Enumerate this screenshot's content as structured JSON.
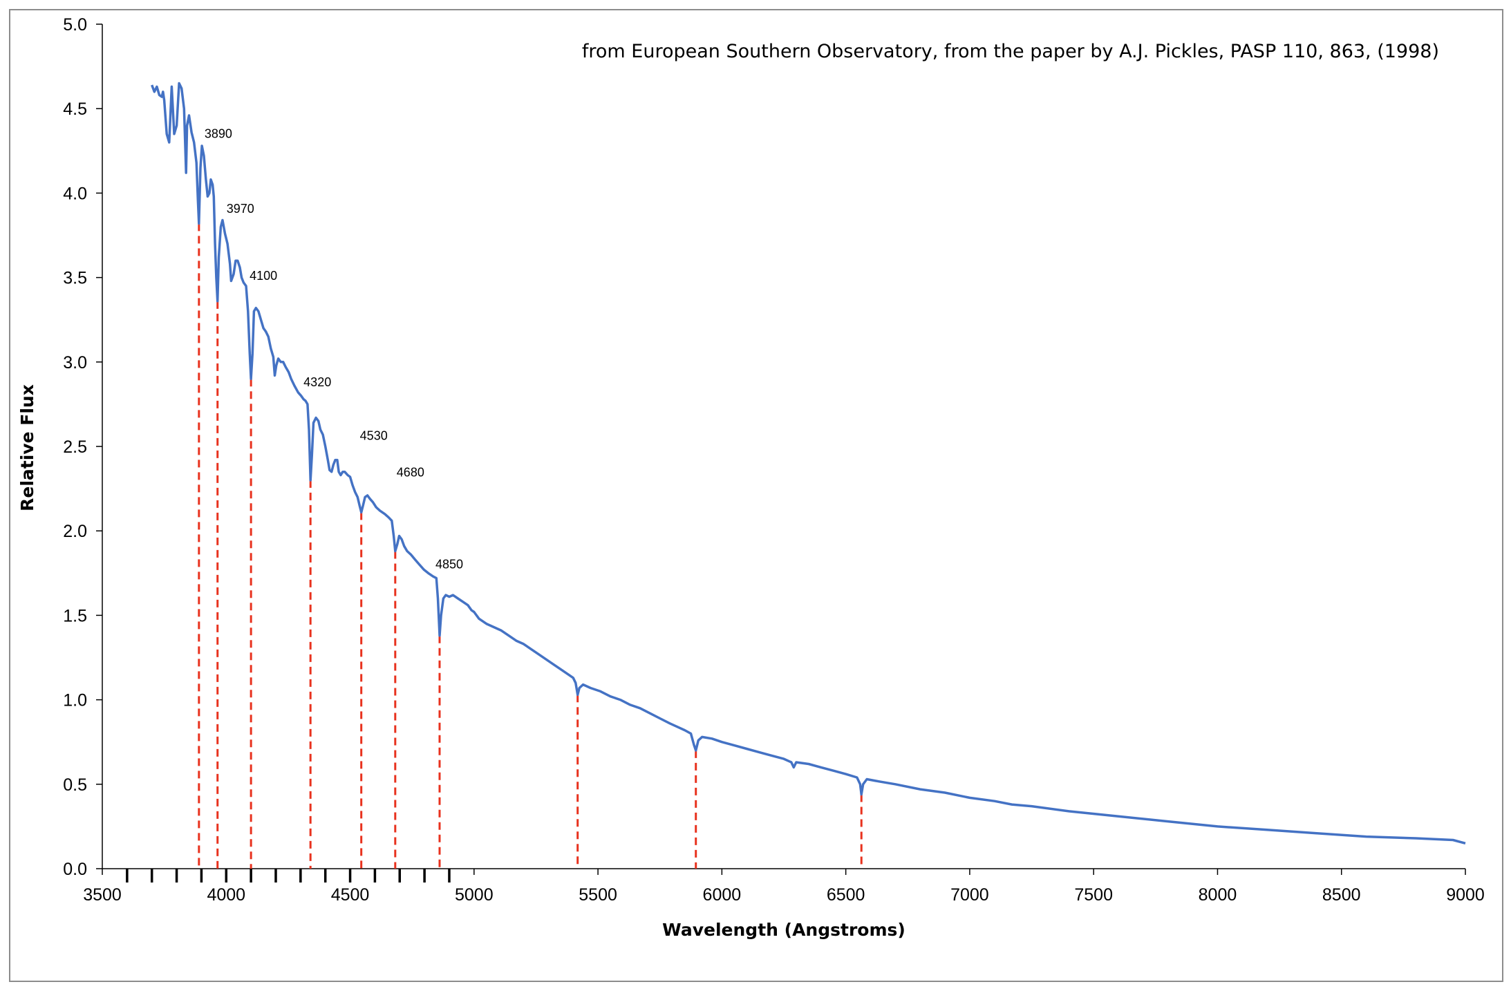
{
  "chart_data": {
    "type": "line",
    "annotation": "from European Southern Observatory, from the paper by A.J. Pickles, PASP 110, 863, (1998)",
    "xlabel": "Wavelength (Angstroms)",
    "ylabel": "Relative Flux",
    "xlim": [
      3500,
      9000
    ],
    "ylim": [
      0,
      5.0
    ],
    "x_ticks": [
      3500,
      4000,
      4500,
      5000,
      5500,
      6000,
      6500,
      7000,
      7500,
      8000,
      8500,
      9000
    ],
    "x_tick_labels": [
      "3500",
      "4000",
      "4500",
      "5000",
      "5500",
      "6000",
      "6500",
      "7000",
      "7500",
      "8000",
      "8500",
      "9000"
    ],
    "y_ticks": [
      0,
      0.5,
      1.0,
      1.5,
      2.0,
      2.5,
      3.0,
      3.5,
      4.0,
      4.5,
      5.0
    ],
    "y_tick_labels": [
      "0.0",
      "0.5",
      "1.0",
      "1.5",
      "2.0",
      "2.5",
      "3.0",
      "3.5",
      "4.0",
      "4.5",
      "5.0"
    ],
    "minor_ticks_x": [
      3600,
      3700,
      3800,
      3900,
      4000,
      4100,
      4200,
      4300,
      4400,
      4500,
      4600,
      4700,
      4800,
      4900
    ],
    "grid": false,
    "legend": "none",
    "series": [
      {
        "color": "#4472c4",
        "points": [
          [
            3700,
            4.64
          ],
          [
            3710,
            4.6
          ],
          [
            3720,
            4.63
          ],
          [
            3730,
            4.58
          ],
          [
            3740,
            4.57
          ],
          [
            3745,
            4.6
          ],
          [
            3750,
            4.55
          ],
          [
            3760,
            4.35
          ],
          [
            3770,
            4.3
          ],
          [
            3780,
            4.63
          ],
          [
            3790,
            4.35
          ],
          [
            3800,
            4.4
          ],
          [
            3810,
            4.65
          ],
          [
            3820,
            4.62
          ],
          [
            3830,
            4.5
          ],
          [
            3838,
            4.12
          ],
          [
            3842,
            4.4
          ],
          [
            3850,
            4.46
          ],
          [
            3860,
            4.36
          ],
          [
            3870,
            4.3
          ],
          [
            3880,
            4.18
          ],
          [
            3886,
            3.95
          ],
          [
            3890,
            3.82
          ],
          [
            3896,
            4.15
          ],
          [
            3902,
            4.28
          ],
          [
            3910,
            4.22
          ],
          [
            3918,
            4.08
          ],
          [
            3925,
            3.98
          ],
          [
            3932,
            4.0
          ],
          [
            3938,
            4.08
          ],
          [
            3945,
            4.05
          ],
          [
            3950,
            3.98
          ],
          [
            3955,
            3.7
          ],
          [
            3960,
            3.5
          ],
          [
            3965,
            3.36
          ],
          [
            3970,
            3.62
          ],
          [
            3978,
            3.8
          ],
          [
            3985,
            3.84
          ],
          [
            3995,
            3.76
          ],
          [
            4005,
            3.7
          ],
          [
            4015,
            3.58
          ],
          [
            4020,
            3.48
          ],
          [
            4030,
            3.52
          ],
          [
            4038,
            3.6
          ],
          [
            4046,
            3.6
          ],
          [
            4055,
            3.56
          ],
          [
            4062,
            3.5
          ],
          [
            4070,
            3.47
          ],
          [
            4080,
            3.45
          ],
          [
            4088,
            3.3
          ],
          [
            4095,
            3.05
          ],
          [
            4100,
            2.9
          ],
          [
            4106,
            3.05
          ],
          [
            4112,
            3.3
          ],
          [
            4120,
            3.32
          ],
          [
            4130,
            3.3
          ],
          [
            4140,
            3.25
          ],
          [
            4150,
            3.2
          ],
          [
            4160,
            3.18
          ],
          [
            4170,
            3.15
          ],
          [
            4180,
            3.08
          ],
          [
            4190,
            3.03
          ],
          [
            4196,
            2.92
          ],
          [
            4202,
            2.98
          ],
          [
            4210,
            3.02
          ],
          [
            4220,
            3.0
          ],
          [
            4230,
            3.0
          ],
          [
            4240,
            2.97
          ],
          [
            4252,
            2.94
          ],
          [
            4262,
            2.9
          ],
          [
            4275,
            2.86
          ],
          [
            4290,
            2.82
          ],
          [
            4302,
            2.8
          ],
          [
            4312,
            2.78
          ],
          [
            4320,
            2.77
          ],
          [
            4328,
            2.75
          ],
          [
            4334,
            2.6
          ],
          [
            4340,
            2.3
          ],
          [
            4346,
            2.45
          ],
          [
            4352,
            2.64
          ],
          [
            4362,
            2.67
          ],
          [
            4372,
            2.65
          ],
          [
            4380,
            2.6
          ],
          [
            4390,
            2.57
          ],
          [
            4400,
            2.5
          ],
          [
            4410,
            2.42
          ],
          [
            4417,
            2.36
          ],
          [
            4425,
            2.35
          ],
          [
            4432,
            2.39
          ],
          [
            4440,
            2.42
          ],
          [
            4448,
            2.42
          ],
          [
            4454,
            2.35
          ],
          [
            4462,
            2.33
          ],
          [
            4470,
            2.35
          ],
          [
            4478,
            2.35
          ],
          [
            4490,
            2.33
          ],
          [
            4500,
            2.32
          ],
          [
            4510,
            2.27
          ],
          [
            4520,
            2.23
          ],
          [
            4530,
            2.2
          ],
          [
            4538,
            2.15
          ],
          [
            4545,
            2.11
          ],
          [
            4552,
            2.15
          ],
          [
            4560,
            2.2
          ],
          [
            4570,
            2.21
          ],
          [
            4580,
            2.19
          ],
          [
            4592,
            2.17
          ],
          [
            4605,
            2.14
          ],
          [
            4620,
            2.12
          ],
          [
            4640,
            2.1
          ],
          [
            4655,
            2.08
          ],
          [
            4668,
            2.06
          ],
          [
            4676,
            1.97
          ],
          [
            4682,
            1.88
          ],
          [
            4690,
            1.92
          ],
          [
            4698,
            1.97
          ],
          [
            4708,
            1.95
          ],
          [
            4718,
            1.91
          ],
          [
            4730,
            1.88
          ],
          [
            4745,
            1.86
          ],
          [
            4762,
            1.83
          ],
          [
            4780,
            1.8
          ],
          [
            4798,
            1.77
          ],
          [
            4815,
            1.75
          ],
          [
            4835,
            1.73
          ],
          [
            4848,
            1.72
          ],
          [
            4854,
            1.6
          ],
          [
            4861,
            1.38
          ],
          [
            4867,
            1.5
          ],
          [
            4876,
            1.6
          ],
          [
            4886,
            1.62
          ],
          [
            4900,
            1.61
          ],
          [
            4915,
            1.62
          ],
          [
            4935,
            1.6
          ],
          [
            4955,
            1.58
          ],
          [
            4975,
            1.56
          ],
          [
            4990,
            1.53
          ],
          [
            5000,
            1.52
          ],
          [
            5020,
            1.48
          ],
          [
            5050,
            1.45
          ],
          [
            5080,
            1.43
          ],
          [
            5110,
            1.41
          ],
          [
            5140,
            1.38
          ],
          [
            5170,
            1.35
          ],
          [
            5200,
            1.33
          ],
          [
            5230,
            1.3
          ],
          [
            5260,
            1.27
          ],
          [
            5290,
            1.24
          ],
          [
            5320,
            1.21
          ],
          [
            5350,
            1.18
          ],
          [
            5380,
            1.15
          ],
          [
            5400,
            1.13
          ],
          [
            5410,
            1.1
          ],
          [
            5418,
            1.03
          ],
          [
            5425,
            1.07
          ],
          [
            5440,
            1.09
          ],
          [
            5470,
            1.07
          ],
          [
            5510,
            1.05
          ],
          [
            5550,
            1.02
          ],
          [
            5590,
            1.0
          ],
          [
            5630,
            0.97
          ],
          [
            5670,
            0.95
          ],
          [
            5710,
            0.92
          ],
          [
            5750,
            0.89
          ],
          [
            5790,
            0.86
          ],
          [
            5820,
            0.84
          ],
          [
            5850,
            0.82
          ],
          [
            5875,
            0.8
          ],
          [
            5888,
            0.73
          ],
          [
            5895,
            0.7
          ],
          [
            5905,
            0.76
          ],
          [
            5920,
            0.78
          ],
          [
            5960,
            0.77
          ],
          [
            6000,
            0.75
          ],
          [
            6050,
            0.73
          ],
          [
            6100,
            0.71
          ],
          [
            6150,
            0.69
          ],
          [
            6200,
            0.67
          ],
          [
            6250,
            0.65
          ],
          [
            6280,
            0.63
          ],
          [
            6290,
            0.6
          ],
          [
            6300,
            0.63
          ],
          [
            6350,
            0.62
          ],
          [
            6400,
            0.6
          ],
          [
            6450,
            0.58
          ],
          [
            6500,
            0.56
          ],
          [
            6545,
            0.54
          ],
          [
            6558,
            0.5
          ],
          [
            6563,
            0.44
          ],
          [
            6570,
            0.5
          ],
          [
            6585,
            0.53
          ],
          [
            6620,
            0.52
          ],
          [
            6700,
            0.5
          ],
          [
            6800,
            0.47
          ],
          [
            6900,
            0.45
          ],
          [
            7000,
            0.42
          ],
          [
            7100,
            0.4
          ],
          [
            7170,
            0.38
          ],
          [
            7250,
            0.37
          ],
          [
            7400,
            0.34
          ],
          [
            7600,
            0.31
          ],
          [
            7800,
            0.28
          ],
          [
            8000,
            0.25
          ],
          [
            8200,
            0.23
          ],
          [
            8400,
            0.21
          ],
          [
            8600,
            0.19
          ],
          [
            8800,
            0.18
          ],
          [
            8950,
            0.17
          ],
          [
            9000,
            0.15
          ]
        ]
      }
    ],
    "absorption_lines": [
      {
        "x": 3890,
        "y": 3.82,
        "label": "3890"
      },
      {
        "x": 3965,
        "y": 3.36,
        "label": "3970"
      },
      {
        "x": 4100,
        "y": 2.9,
        "label": "4100"
      },
      {
        "x": 4340,
        "y": 2.3,
        "label": "4320"
      },
      {
        "x": 4545,
        "y": 2.11,
        "label": "4530"
      },
      {
        "x": 4682,
        "y": 1.88,
        "label": "4680"
      },
      {
        "x": 4861,
        "y": 1.38,
        "label": "4850"
      },
      {
        "x": 5418,
        "y": 1.03,
        "label": ""
      },
      {
        "x": 5895,
        "y": 0.7,
        "label": ""
      },
      {
        "x": 6563,
        "y": 0.44,
        "label": ""
      }
    ],
    "line_color": "#4472c4",
    "marker_color": "#e8321e"
  }
}
